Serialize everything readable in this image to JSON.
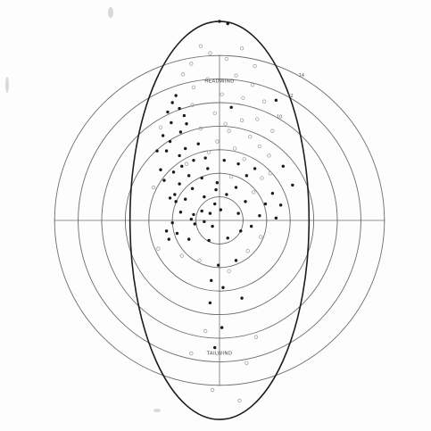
{
  "chart_data": {
    "type": "scatter",
    "plot": "polar",
    "title": "",
    "ring_values": [
      2,
      4,
      6,
      8,
      10,
      12,
      14
    ],
    "ring_labels": [
      {
        "value": 10,
        "text": "10"
      },
      {
        "value": 12,
        "text": "12"
      },
      {
        "value": 14,
        "text": "14"
      }
    ],
    "region_labels": {
      "headwind": "HEADWIND",
      "tailwind": "TAILWIND"
    },
    "envelope": {
      "shape": "ellipse",
      "semi_x": 7.6,
      "semi_y": 16.9
    },
    "axes": {
      "xlim": [
        -17.5,
        17.5
      ],
      "ylim": [
        -17.5,
        17.5
      ],
      "grid": true
    },
    "series": [
      {
        "marker": "filled",
        "points": [
          [
            0.0,
            16.9
          ],
          [
            0.7,
            16.7
          ],
          [
            -3.7,
            10.6
          ],
          [
            -4.0,
            10.0
          ],
          [
            -3.4,
            9.5
          ],
          [
            -4.4,
            9.2
          ],
          [
            -3.0,
            8.9
          ],
          [
            -4.1,
            8.3
          ],
          [
            -2.8,
            8.2
          ],
          [
            -3.3,
            7.5
          ],
          [
            -4.8,
            7.2
          ],
          [
            -4.2,
            6.7
          ],
          [
            -1.8,
            6.5
          ],
          [
            -2.9,
            6.1
          ],
          [
            -3.4,
            5.5
          ],
          [
            -4.5,
            5.9
          ],
          [
            -1.2,
            5.3
          ],
          [
            -2.2,
            5.1
          ],
          [
            -3.2,
            4.6
          ],
          [
            -3.9,
            4.1
          ],
          [
            -2.6,
            3.8
          ],
          [
            -1.5,
            3.6
          ],
          [
            -0.2,
            3.2
          ],
          [
            -4.7,
            3.4
          ],
          [
            -3.4,
            3.1
          ],
          [
            -2.3,
            2.7
          ],
          [
            -3.8,
            2.2
          ],
          [
            -4.2,
            1.9
          ],
          [
            -3.7,
            1.6
          ],
          [
            -2.9,
            1.8
          ],
          [
            -1.3,
            2.0
          ],
          [
            -0.3,
            2.6
          ],
          [
            0.6,
            2.2
          ],
          [
            1.4,
            2.8
          ],
          [
            2.3,
            3.8
          ],
          [
            3.0,
            4.4
          ],
          [
            1.6,
            4.8
          ],
          [
            0.4,
            5.1
          ],
          [
            -1.0,
            4.4
          ],
          [
            -0.4,
            1.4
          ],
          [
            0.1,
            0.9
          ],
          [
            -0.8,
            0.6
          ],
          [
            -1.5,
            0.8
          ],
          [
            -2.2,
            0.5
          ],
          [
            -2.4,
            0.1
          ],
          [
            -2.1,
            -0.3
          ],
          [
            -1.3,
            -0.1
          ],
          [
            -0.6,
            -0.5
          ],
          [
            -3.3,
            0.7
          ],
          [
            -4.0,
            -0.2
          ],
          [
            -4.5,
            -0.9
          ],
          [
            -3.6,
            -1.1
          ],
          [
            -4.3,
            -1.6
          ],
          [
            -2.6,
            -1.6
          ],
          [
            -0.9,
            -1.7
          ],
          [
            0.7,
            -1.5
          ],
          [
            1.8,
            -0.9
          ],
          [
            2.7,
            -0.5
          ],
          [
            3.4,
            0.4
          ],
          [
            3.9,
            1.4
          ],
          [
            4.5,
            2.3
          ],
          [
            5.2,
            1.3
          ],
          [
            4.8,
            0.2
          ],
          [
            1.4,
            -3.4
          ],
          [
            -0.1,
            -3.8
          ],
          [
            -0.7,
            -5.1
          ],
          [
            0.3,
            -5.7
          ],
          [
            -0.8,
            -7.0
          ],
          [
            1.9,
            -6.6
          ],
          [
            0.2,
            -9.1
          ],
          [
            -0.4,
            -10.8
          ],
          [
            1.6,
            0.6
          ],
          [
            2.2,
            1.6
          ],
          [
            -5.3,
            5.9
          ],
          [
            -5.0,
            4.3
          ],
          [
            5.4,
            4.6
          ],
          [
            6.2,
            3.0
          ],
          [
            4.8,
            10.2
          ],
          [
            1.0,
            9.6
          ]
        ]
      },
      {
        "marker": "hollow",
        "points": [
          [
            -1.6,
            14.8
          ],
          [
            -0.8,
            14.2
          ],
          [
            0.6,
            13.7
          ],
          [
            1.9,
            14.6
          ],
          [
            3.0,
            13.1
          ],
          [
            -2.4,
            13.3
          ],
          [
            -3.1,
            12.4
          ],
          [
            -1.0,
            12.0
          ],
          [
            1.4,
            12.3
          ],
          [
            2.8,
            11.5
          ],
          [
            -2.2,
            11.3
          ],
          [
            0.2,
            10.7
          ],
          [
            2.0,
            10.4
          ],
          [
            -2.3,
            9.8
          ],
          [
            3.8,
            10.1
          ],
          [
            -0.4,
            9.1
          ],
          [
            1.9,
            8.5
          ],
          [
            3.2,
            8.6
          ],
          [
            -1.6,
            7.8
          ],
          [
            0.8,
            7.6
          ],
          [
            2.6,
            7.1
          ],
          [
            4.5,
            7.6
          ],
          [
            -5.0,
            7.9
          ],
          [
            -0.2,
            6.7
          ],
          [
            1.3,
            6.1
          ],
          [
            3.4,
            6.3
          ],
          [
            4.2,
            5.5
          ],
          [
            -0.9,
            5.8
          ],
          [
            2.1,
            5.2
          ],
          [
            3.6,
            3.6
          ],
          [
            4.3,
            4.0
          ],
          [
            1.0,
            3.7
          ],
          [
            -5.6,
            2.8
          ],
          [
            2.9,
            2.4
          ],
          [
            3.5,
            -1.4
          ],
          [
            2.4,
            -2.6
          ],
          [
            -5.2,
            -2.4
          ],
          [
            -3.2,
            -3.0
          ],
          [
            -1.7,
            -3.4
          ],
          [
            0.8,
            -4.3
          ],
          [
            -1.2,
            -9.4
          ],
          [
            -2.4,
            -11.3
          ],
          [
            2.3,
            -12.1
          ],
          [
            -0.6,
            -14.4
          ],
          [
            1.7,
            -15.3
          ],
          [
            3.1,
            -9.9
          ],
          [
            -2.8,
            4.8
          ],
          [
            0.5,
            8.2
          ]
        ]
      }
    ]
  }
}
